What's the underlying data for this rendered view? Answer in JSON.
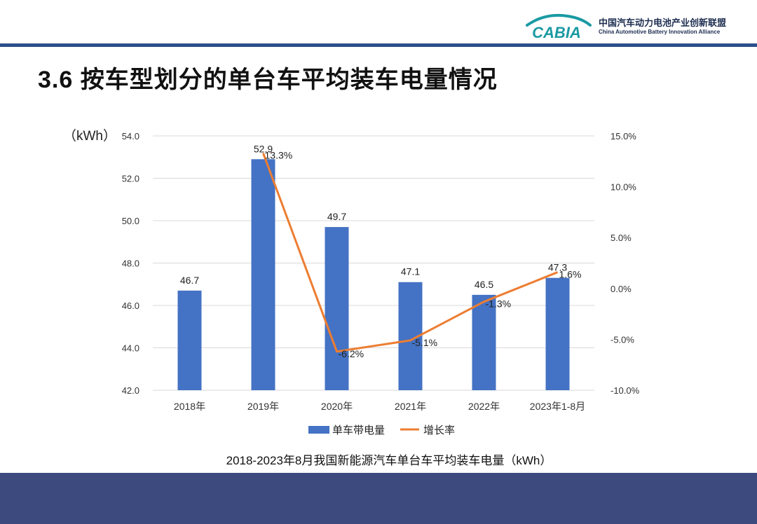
{
  "header": {
    "logo_text": "CABIA",
    "org_cn": "中国汽车动力电池产业创新联盟",
    "org_en": "China Automotive Battery Innovation Alliance"
  },
  "slide": {
    "title": "3.6 按车型划分的单台车平均装车电量情况",
    "caption": "2018-2023年8月我国新能源汽车单台车平均装车电量（kWh）"
  },
  "colors": {
    "bar": "#4472c4",
    "line": "#ed7d31",
    "footer": "#3d4a7e",
    "header_line": "#2e4f8a"
  },
  "chart_data": {
    "type": "bar+line",
    "categories": [
      "2018年",
      "2019年",
      "2020年",
      "2021年",
      "2022年",
      "2023年1-8月"
    ],
    "series": [
      {
        "name": "单车带电量",
        "kind": "bar",
        "axis": "left",
        "values": [
          46.7,
          52.9,
          49.7,
          47.1,
          46.5,
          47.3
        ],
        "labels": [
          "46.7",
          "52.9",
          "49.7",
          "47.1",
          "46.5",
          "47.3"
        ]
      },
      {
        "name": "增长率",
        "kind": "line",
        "axis": "right",
        "values": [
          null,
          13.3,
          -6.2,
          -5.1,
          -1.3,
          1.6
        ],
        "labels": [
          "",
          "13.3%",
          "-6.2%",
          "-5.1%",
          "-1.3%",
          "1.6%"
        ]
      }
    ],
    "y_left": {
      "unit": "（kWh）",
      "min": 42,
      "max": 54,
      "ticks": [
        "42.0",
        "44.0",
        "46.0",
        "48.0",
        "50.0",
        "52.0",
        "54.0"
      ]
    },
    "y_right": {
      "min": -10,
      "max": 15,
      "ticks": [
        "-10.0%",
        "-5.0%",
        "0.0%",
        "5.0%",
        "10.0%",
        "15.0%"
      ]
    },
    "grid": true,
    "legend_position": "bottom"
  }
}
